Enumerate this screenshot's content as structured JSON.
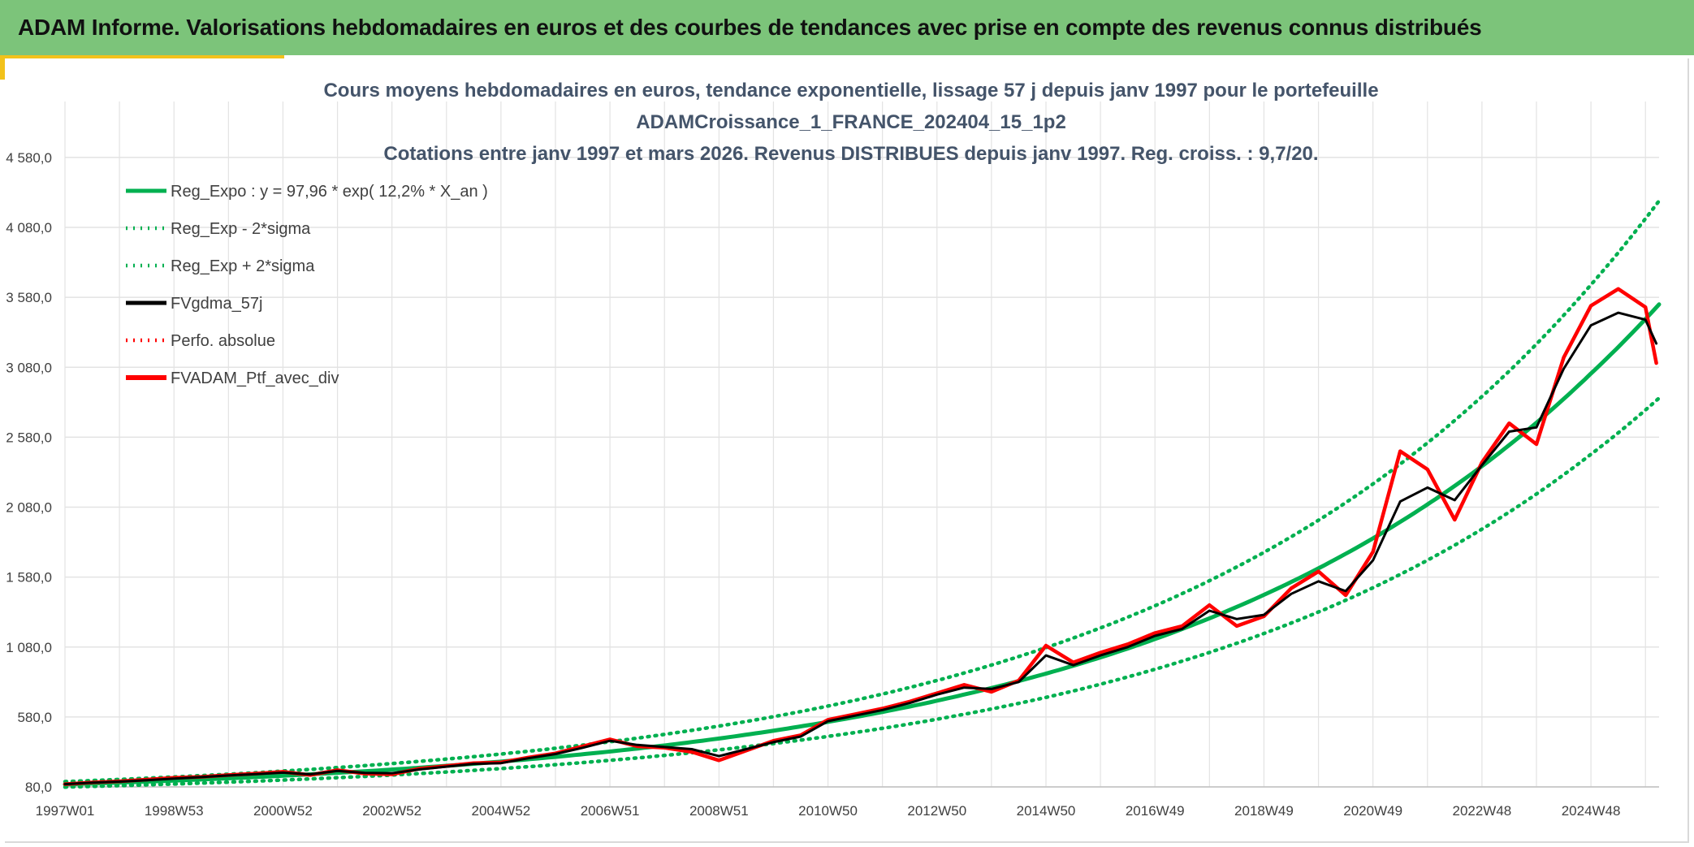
{
  "header": {
    "title": "ADAM Informe. Valorisations hebdomadaires en euros et des courbes de tendances avec prise en compte des revenus connus distribués"
  },
  "colors": {
    "banner": "#7cc47a",
    "accent": "#f2c21b",
    "trend": "#00b050",
    "smooth": "#000000",
    "portfolio": "#ff0000",
    "grid": "#e3e3e3"
  },
  "chart_data": {
    "type": "line",
    "title_lines": [
      "Cours moyens hebdomadaires en euros, tendance exponentielle, lissage 57 j depuis janv 1997 pour le portefeuille",
      "ADAMCroissance_1_FRANCE_202404_15_1p2",
      "Cotations entre janv 1997 et mars 2026. Revenus DISTRIBUES depuis janv 1997. Reg. croiss. : 9,7/20."
    ],
    "xlabel": "",
    "ylabel": "",
    "x_range": [
      1997.0,
      2026.25
    ],
    "ylim": [
      80,
      4980
    ],
    "y_ticks": [
      "80,0",
      "580,0",
      "1 080,0",
      "1 580,0",
      "2 080,0",
      "2 580,0",
      "3 080,0",
      "3 580,0",
      "4 080,0",
      "4 580,0"
    ],
    "y_tick_values": [
      80,
      580,
      1080,
      1580,
      2080,
      2580,
      3080,
      3580,
      4080,
      4580
    ],
    "x_ticks": [
      "1997W01",
      "1998W53",
      "2000W52",
      "2002W52",
      "2004W52",
      "2006W51",
      "2008W51",
      "2010W50",
      "2012W50",
      "2014W50",
      "2016W49",
      "2018W49",
      "2020W49",
      "2022W48",
      "2024W48"
    ],
    "x_tick_values": [
      1997.0,
      1999.0,
      2001.0,
      2003.0,
      2005.0,
      2007.0,
      2009.0,
      2011.0,
      2013.0,
      2015.0,
      2017.0,
      2019.0,
      2021.0,
      2023.0,
      2025.0
    ],
    "grid": true,
    "legend_position": "top-left",
    "legend": [
      {
        "label": "Reg_Expo : y = 97,96 * exp( 12,2% *  X_an )",
        "style": "solid",
        "color": "#00b050"
      },
      {
        "label": "Reg_Exp - 2*sigma",
        "style": "dotted",
        "color": "#00b050"
      },
      {
        "label": "Reg_Exp + 2*sigma",
        "style": "dotted",
        "color": "#00b050"
      },
      {
        "label": "FVgdma_57j",
        "style": "solid",
        "color": "#000000"
      },
      {
        "label": "Perfo. absolue",
        "style": "dotted",
        "color": "#ff0000"
      },
      {
        "label": "FVADAM_Ptf_avec_div",
        "style": "solid",
        "color": "#ff0000"
      }
    ],
    "series": [
      {
        "name": "Reg_Expo",
        "color": "#00b050",
        "x": [
          1997.0,
          1999.0,
          2001.0,
          2003.0,
          2005.0,
          2007.0,
          2009.0,
          2011.0,
          2013.0,
          2015.0,
          2017.0,
          2019.0,
          2021.0,
          2023.0,
          2025.0,
          2026.25
        ],
        "values": [
          98,
          125,
          160,
          204,
          261,
          333,
          426,
          545,
          696,
          890,
          1137,
          1453,
          1857,
          2373,
          3035,
          3530
        ]
      },
      {
        "name": "Reg_Exp - 2*sigma",
        "color": "#00b050",
        "x": [
          1997.0,
          1999.0,
          2001.0,
          2003.0,
          2005.0,
          2007.0,
          2009.0,
          2011.0,
          2013.0,
          2015.0,
          2017.0,
          2019.0,
          2021.0,
          2023.0,
          2025.0,
          2026.25
        ],
        "values": [
          79,
          101,
          129,
          165,
          211,
          270,
          345,
          441,
          564,
          720,
          921,
          1177,
          1504,
          1923,
          2458,
          2860
        ]
      },
      {
        "name": "Reg_Exp + 2*sigma",
        "color": "#00b050",
        "x": [
          1997.0,
          1999.0,
          2001.0,
          2003.0,
          2005.0,
          2007.0,
          2009.0,
          2011.0,
          2013.0,
          2015.0,
          2017.0,
          2019.0,
          2021.0,
          2023.0,
          2025.0,
          2026.25
        ],
        "values": [
          118,
          151,
          193,
          247,
          315,
          403,
          515,
          658,
          841,
          1076,
          1375,
          1757,
          2246,
          2871,
          3670,
          4270
        ]
      },
      {
        "name": "FVgdma_57j",
        "color": "#000000",
        "x": [
          1997.0,
          1997.5,
          1998.0,
          1998.5,
          1999.0,
          1999.5,
          2000.0,
          2000.5,
          2001.0,
          2001.5,
          2002.0,
          2002.5,
          2003.0,
          2003.5,
          2004.0,
          2004.5,
          2005.0,
          2005.5,
          2006.0,
          2006.5,
          2007.0,
          2007.5,
          2008.0,
          2008.5,
          2009.0,
          2009.5,
          2010.0,
          2010.5,
          2011.0,
          2011.5,
          2012.0,
          2012.5,
          2013.0,
          2013.5,
          2014.0,
          2014.5,
          2015.0,
          2015.5,
          2016.0,
          2016.5,
          2017.0,
          2017.5,
          2018.0,
          2018.5,
          2019.0,
          2019.5,
          2020.0,
          2020.5,
          2021.0,
          2021.5,
          2022.0,
          2022.5,
          2023.0,
          2023.5,
          2024.0,
          2024.5,
          2025.0,
          2025.5,
          2026.0,
          2026.2
        ],
        "values": [
          100,
          110,
          118,
          128,
          140,
          150,
          162,
          172,
          182,
          170,
          195,
          180,
          178,
          205,
          225,
          245,
          250,
          285,
          315,
          360,
          410,
          380,
          365,
          350,
          300,
          350,
          400,
          440,
          550,
          590,
          630,
          680,
          740,
          790,
          780,
          830,
          1020,
          950,
          1020,
          1080,
          1160,
          1210,
          1340,
          1280,
          1310,
          1460,
          1550,
          1480,
          1700,
          2120,
          2220,
          2130,
          2380,
          2620,
          2650,
          3070,
          3380,
          3470,
          3420,
          3250
        ]
      },
      {
        "name": "FVADAM_Ptf_avec_div",
        "color": "#ff0000",
        "x": [
          1997.0,
          1997.5,
          1998.0,
          1998.5,
          1999.0,
          1999.5,
          2000.0,
          2000.5,
          2001.0,
          2001.5,
          2002.0,
          2002.5,
          2003.0,
          2003.5,
          2004.0,
          2004.5,
          2005.0,
          2005.5,
          2006.0,
          2006.5,
          2007.0,
          2007.5,
          2008.0,
          2008.5,
          2009.0,
          2009.5,
          2010.0,
          2010.5,
          2011.0,
          2011.5,
          2012.0,
          2012.5,
          2013.0,
          2013.5,
          2014.0,
          2014.5,
          2015.0,
          2015.5,
          2016.0,
          2016.5,
          2017.0,
          2017.5,
          2018.0,
          2018.5,
          2019.0,
          2019.5,
          2020.0,
          2020.5,
          2021.0,
          2021.5,
          2022.0,
          2022.5,
          2023.0,
          2023.5,
          2024.0,
          2024.5,
          2025.0,
          2025.5,
          2026.0,
          2026.2
        ],
        "values": [
          100,
          112,
          120,
          132,
          145,
          152,
          165,
          175,
          188,
          165,
          200,
          175,
          170,
          210,
          230,
          250,
          255,
          290,
          320,
          370,
          420,
          370,
          360,
          330,
          270,
          340,
          410,
          450,
          560,
          600,
          640,
          690,
          750,
          810,
          760,
          840,
          1090,
          970,
          1040,
          1100,
          1180,
          1230,
          1380,
          1230,
          1300,
          1500,
          1620,
          1450,
          1760,
          2480,
          2350,
          1990,
          2400,
          2680,
          2530,
          3150,
          3520,
          3640,
          3510,
          3110
        ]
      }
    ]
  }
}
